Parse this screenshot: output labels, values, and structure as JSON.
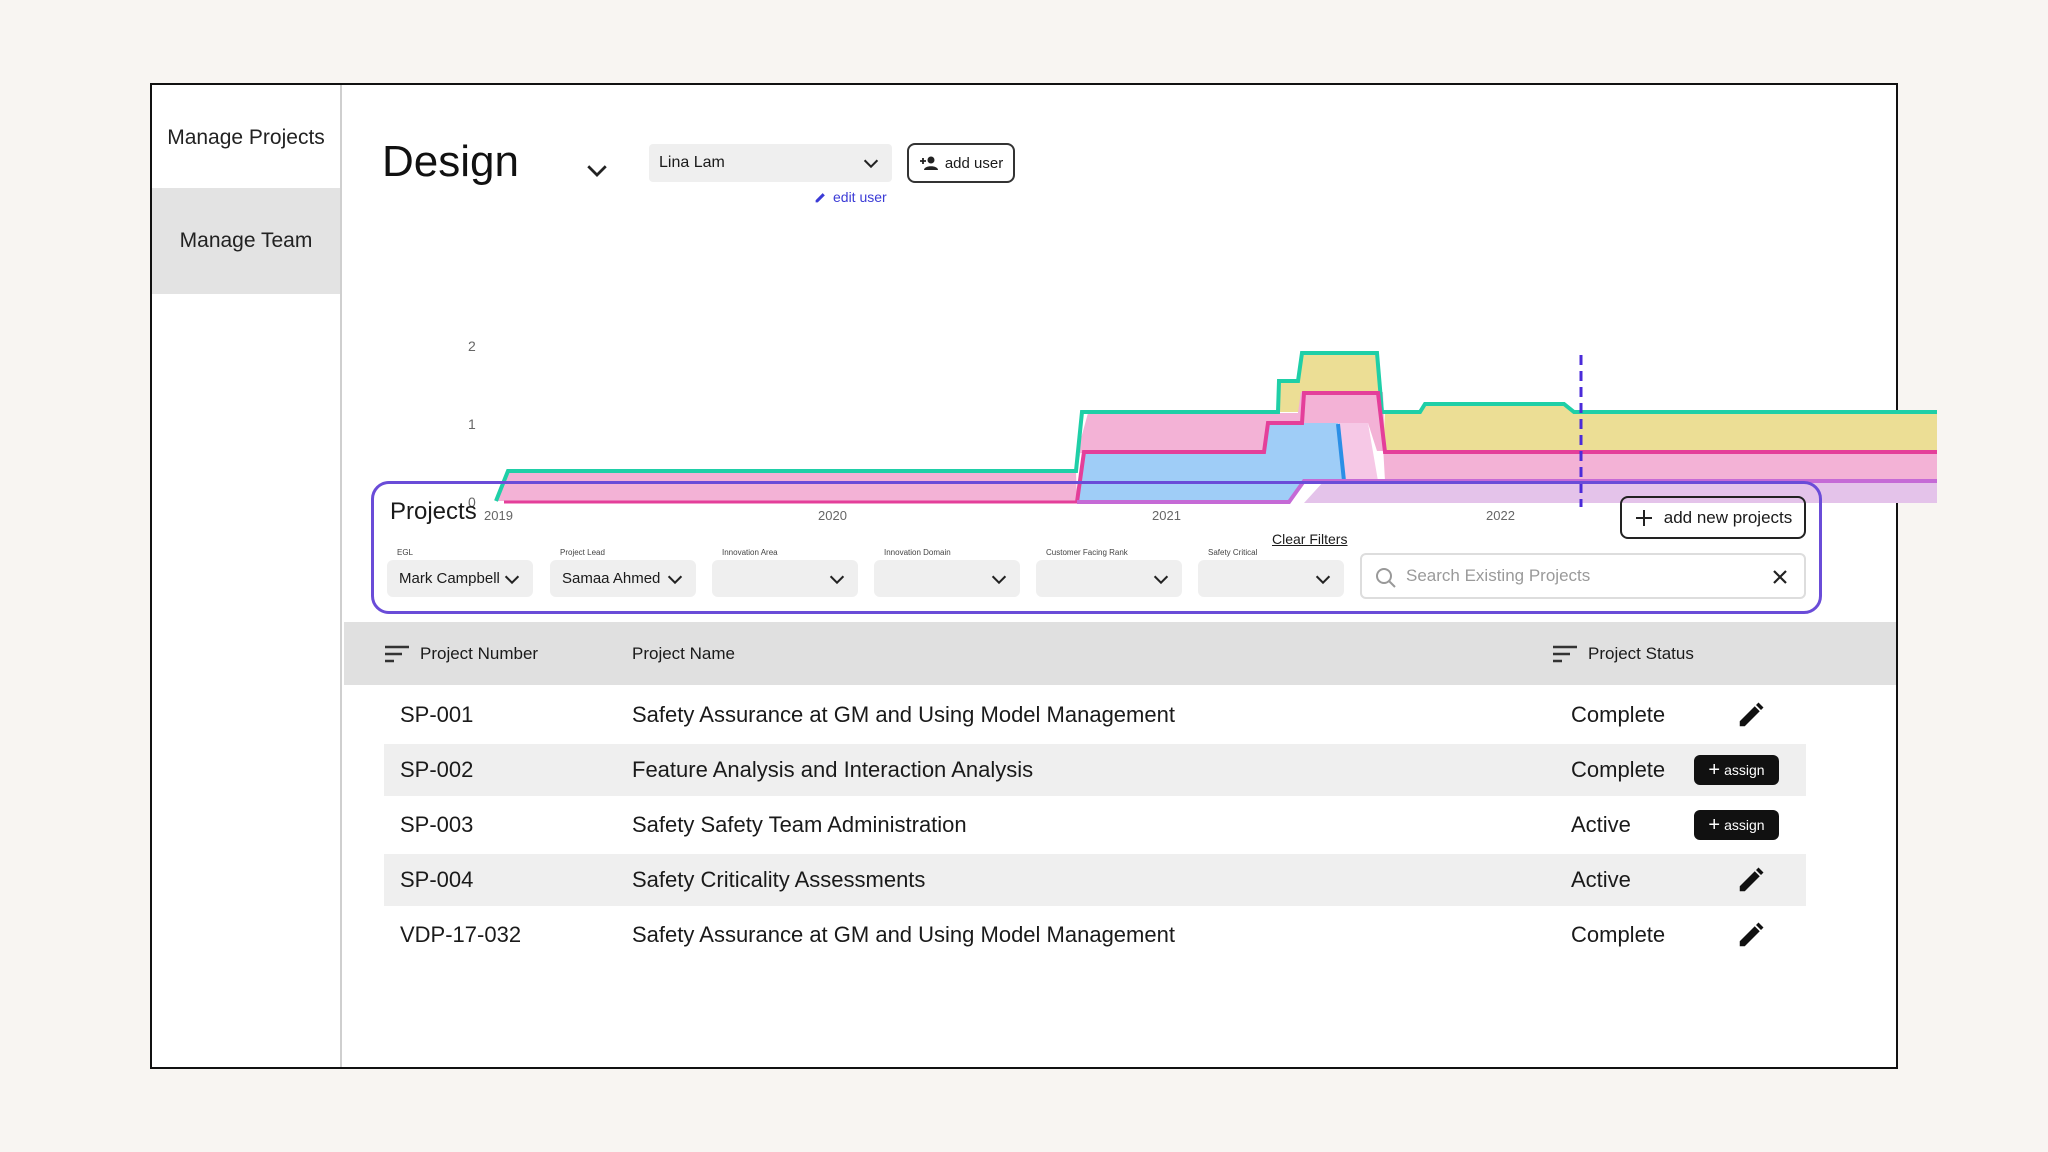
{
  "sidebar": {
    "items": [
      {
        "label": "Manage Projects"
      },
      {
        "label": "Manage Team"
      }
    ]
  },
  "header": {
    "title": "Design",
    "user_select": "Lina Lam",
    "add_user_label": "add user",
    "edit_user_label": "edit user"
  },
  "chart_data": {
    "type": "area",
    "x_ticks": [
      "2019",
      "2020",
      "2021",
      "2022"
    ],
    "y_ticks": [
      "0",
      "1",
      "2"
    ],
    "ylim": [
      0,
      2
    ],
    "colors": {
      "pink": "#f3b2d6",
      "blue": "#9fcdf7",
      "yellow": "#ecde95",
      "lavender": "#e4c3ea",
      "teal_line": "#1fcfa7",
      "magenta_line": "#e43f9a",
      "blue_line": "#2c8fe6",
      "purple_line": "#c56ad6",
      "today_marker": "#4b2bd9"
    }
  },
  "projects": {
    "title": "Projects",
    "add_label": "add new projects",
    "clear_filters": "Clear Filters",
    "filters": [
      {
        "label": "EGL",
        "value": "Mark Campbell"
      },
      {
        "label": "Project Lead",
        "value": "Samaa Ahmed"
      },
      {
        "label": "Innovation Area",
        "value": ""
      },
      {
        "label": "Innovation Domain",
        "value": ""
      },
      {
        "label": "Customer Facing Rank",
        "value": ""
      },
      {
        "label": "Safety Critical",
        "value": ""
      }
    ],
    "search_placeholder": "Search Existing Projects"
  },
  "table": {
    "headers": {
      "number": "Project Number",
      "name": "Project Name",
      "status": "Project Status"
    },
    "rows": [
      {
        "number": "SP-001",
        "name": "Safety Assurance at GM and Using Model Management",
        "status": "Complete",
        "action": "edit"
      },
      {
        "number": "SP-002",
        "name": "Feature Analysis and Interaction Analysis",
        "status": "Complete",
        "action": "assign"
      },
      {
        "number": "SP-003",
        "name": "Safety Safety Team Administration",
        "status": "Active",
        "action": "assign"
      },
      {
        "number": "SP-004",
        "name": "Safety Criticality Assessments",
        "status": "Active",
        "action": "edit"
      },
      {
        "number": "VDP-17-032",
        "name": "Safety Assurance at GM and Using Model Management",
        "status": "Complete",
        "action": "edit"
      }
    ],
    "assign_label": "assign"
  }
}
